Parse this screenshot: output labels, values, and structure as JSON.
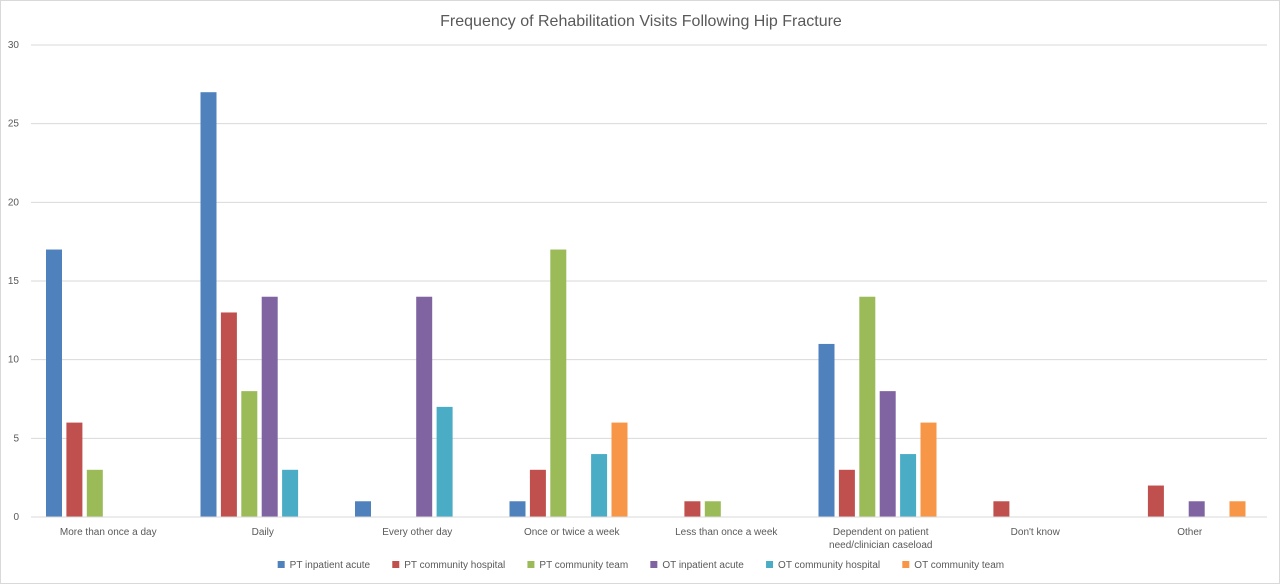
{
  "chart_data": {
    "type": "bar",
    "title": "Frequency of Rehabilitation Visits Following Hip Fracture",
    "xlabel": "",
    "ylabel": "",
    "ylim": [
      0,
      30
    ],
    "yticks": [
      0,
      5,
      10,
      15,
      20,
      25,
      30
    ],
    "grid": true,
    "legend_position": "bottom",
    "categories": [
      [
        "More than once a day"
      ],
      [
        "Daily"
      ],
      [
        "Every other day"
      ],
      [
        "Once or twice a week"
      ],
      [
        "Less than once a week"
      ],
      [
        "Dependent on patient",
        "need/clinician caseload"
      ],
      [
        "Don't know"
      ],
      [
        "Other"
      ]
    ],
    "series": [
      {
        "name": "PT inpatient acute",
        "color": "#4f81bd",
        "values": [
          17,
          27,
          1,
          1,
          0,
          11,
          0,
          0
        ]
      },
      {
        "name": "PT community hospital",
        "color": "#c0504d",
        "values": [
          6,
          13,
          0,
          3,
          1,
          3,
          1,
          2
        ]
      },
      {
        "name": "PT community team",
        "color": "#9bbb59",
        "values": [
          3,
          8,
          0,
          17,
          1,
          14,
          0,
          0
        ]
      },
      {
        "name": "OT inpatient acute",
        "color": "#8064a2",
        "values": [
          0,
          14,
          14,
          0,
          0,
          8,
          0,
          1
        ]
      },
      {
        "name": "OT community hospital",
        "color": "#4bacc6",
        "values": [
          0,
          3,
          7,
          4,
          0,
          4,
          0,
          0
        ]
      },
      {
        "name": "OT community team",
        "color": "#f79646",
        "values": [
          0,
          0,
          0,
          6,
          0,
          6,
          0,
          1
        ]
      }
    ]
  }
}
